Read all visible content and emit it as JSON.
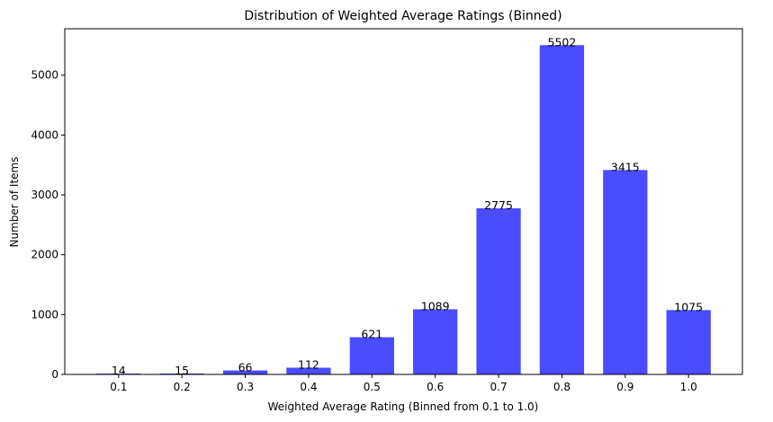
{
  "chart_data": {
    "type": "bar",
    "title": "Distribution of Weighted Average Ratings (Binned)",
    "xlabel": "Weighted Average Rating (Binned from 0.1 to 1.0)",
    "ylabel": "Number of Items",
    "categories": [
      "0.1",
      "0.2",
      "0.3",
      "0.4",
      "0.5",
      "0.6",
      "0.7",
      "0.8",
      "0.9",
      "1.0"
    ],
    "values": [
      14,
      15,
      66,
      112,
      621,
      1089,
      2775,
      5502,
      3415,
      1075
    ],
    "data_labels": [
      "14",
      "15",
      "66",
      "112",
      "621",
      "1089",
      "2775",
      "5502",
      "3415",
      "1075"
    ],
    "ylim": [
      0,
      5776
    ],
    "yticks": [
      0,
      1000,
      2000,
      3000,
      4000,
      5000
    ],
    "ytick_labels": [
      "0",
      "1000",
      "2000",
      "3000",
      "4000",
      "5000"
    ],
    "bar_color": "#4b4bff",
    "grid": false,
    "legend": "none"
  }
}
